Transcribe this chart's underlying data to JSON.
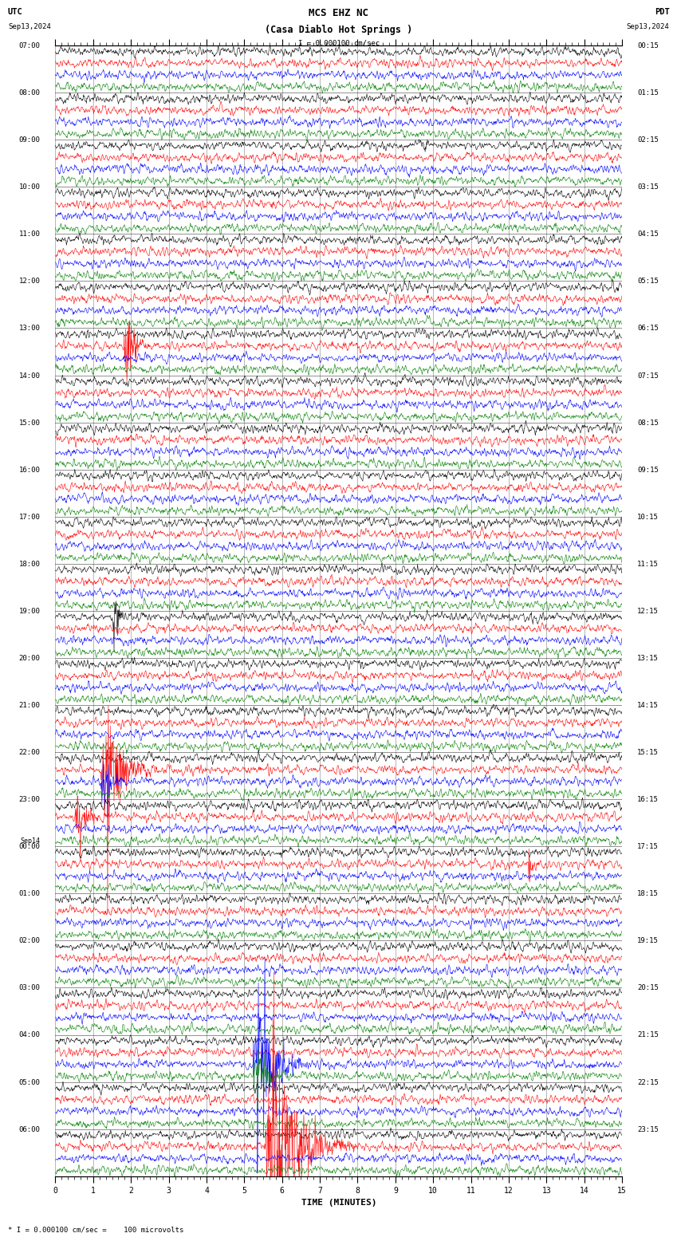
{
  "title_line1": "MCS EHZ NC",
  "title_line2": "(Casa Diablo Hot Springs )",
  "scale_label": "I = 0.000100 cm/sec",
  "bottom_label": "* I = 0.000100 cm/sec =    100 microvolts",
  "left_header": "UTC",
  "left_date": "Sep13,2024",
  "right_header": "PDT",
  "right_date": "Sep13,2024",
  "sep14_label": "Sep14",
  "xlabel": "TIME (MINUTES)",
  "xmin": 0,
  "xmax": 15,
  "background_color": "#ffffff",
  "grid_color": "#aaaaaa",
  "trace_colors": [
    "black",
    "red",
    "blue",
    "green"
  ],
  "hours_utc": [
    "07:00",
    "08:00",
    "09:00",
    "10:00",
    "11:00",
    "12:00",
    "13:00",
    "14:00",
    "15:00",
    "16:00",
    "17:00",
    "18:00",
    "19:00",
    "20:00",
    "21:00",
    "22:00",
    "23:00",
    "00:00",
    "01:00",
    "02:00",
    "03:00",
    "04:00",
    "05:00",
    "06:00"
  ],
  "hours_pdt": [
    "00:15",
    "01:15",
    "02:15",
    "03:15",
    "04:15",
    "05:15",
    "06:15",
    "07:15",
    "08:15",
    "09:15",
    "10:15",
    "11:15",
    "12:15",
    "13:15",
    "14:15",
    "15:15",
    "16:15",
    "17:15",
    "18:15",
    "19:15",
    "20:15",
    "21:15",
    "22:15",
    "23:15"
  ],
  "num_hours": 24,
  "traces_per_hour": 4,
  "noise_amplitude": 0.004,
  "title_fontsize": 9,
  "label_fontsize": 6.5,
  "tick_fontsize": 7,
  "axis_fontsize": 8,
  "fig_width": 8.5,
  "fig_height": 15.84,
  "dpi": 100,
  "events": [
    {
      "hour": 6,
      "trace": 1,
      "time_min": 1.8,
      "duration": 0.7,
      "amplitude_mult": 8,
      "color": "blue"
    },
    {
      "hour": 12,
      "trace": 0,
      "time_min": 1.5,
      "duration": 0.4,
      "amplitude_mult": 5,
      "color": "black"
    },
    {
      "hour": 15,
      "trace": 1,
      "time_min": 1.2,
      "duration": 1.5,
      "amplitude_mult": 12,
      "color": "red"
    },
    {
      "hour": 15,
      "trace": 2,
      "time_min": 1.2,
      "duration": 0.8,
      "amplitude_mult": 5,
      "color": "blue"
    },
    {
      "hour": 16,
      "trace": 1,
      "time_min": 0.5,
      "duration": 1.0,
      "amplitude_mult": 4,
      "color": "red"
    },
    {
      "hour": 17,
      "trace": 1,
      "time_min": 12.5,
      "duration": 0.3,
      "amplitude_mult": 4,
      "color": "red"
    },
    {
      "hour": 21,
      "trace": 2,
      "time_min": 5.2,
      "duration": 1.5,
      "amplitude_mult": 15,
      "color": "blue"
    },
    {
      "hour": 21,
      "trace": 3,
      "time_min": 5.2,
      "duration": 1.0,
      "amplitude_mult": 6,
      "color": "green"
    },
    {
      "hour": 23,
      "trace": 1,
      "time_min": 5.5,
      "duration": 2.5,
      "amplitude_mult": 18,
      "color": "red"
    }
  ]
}
